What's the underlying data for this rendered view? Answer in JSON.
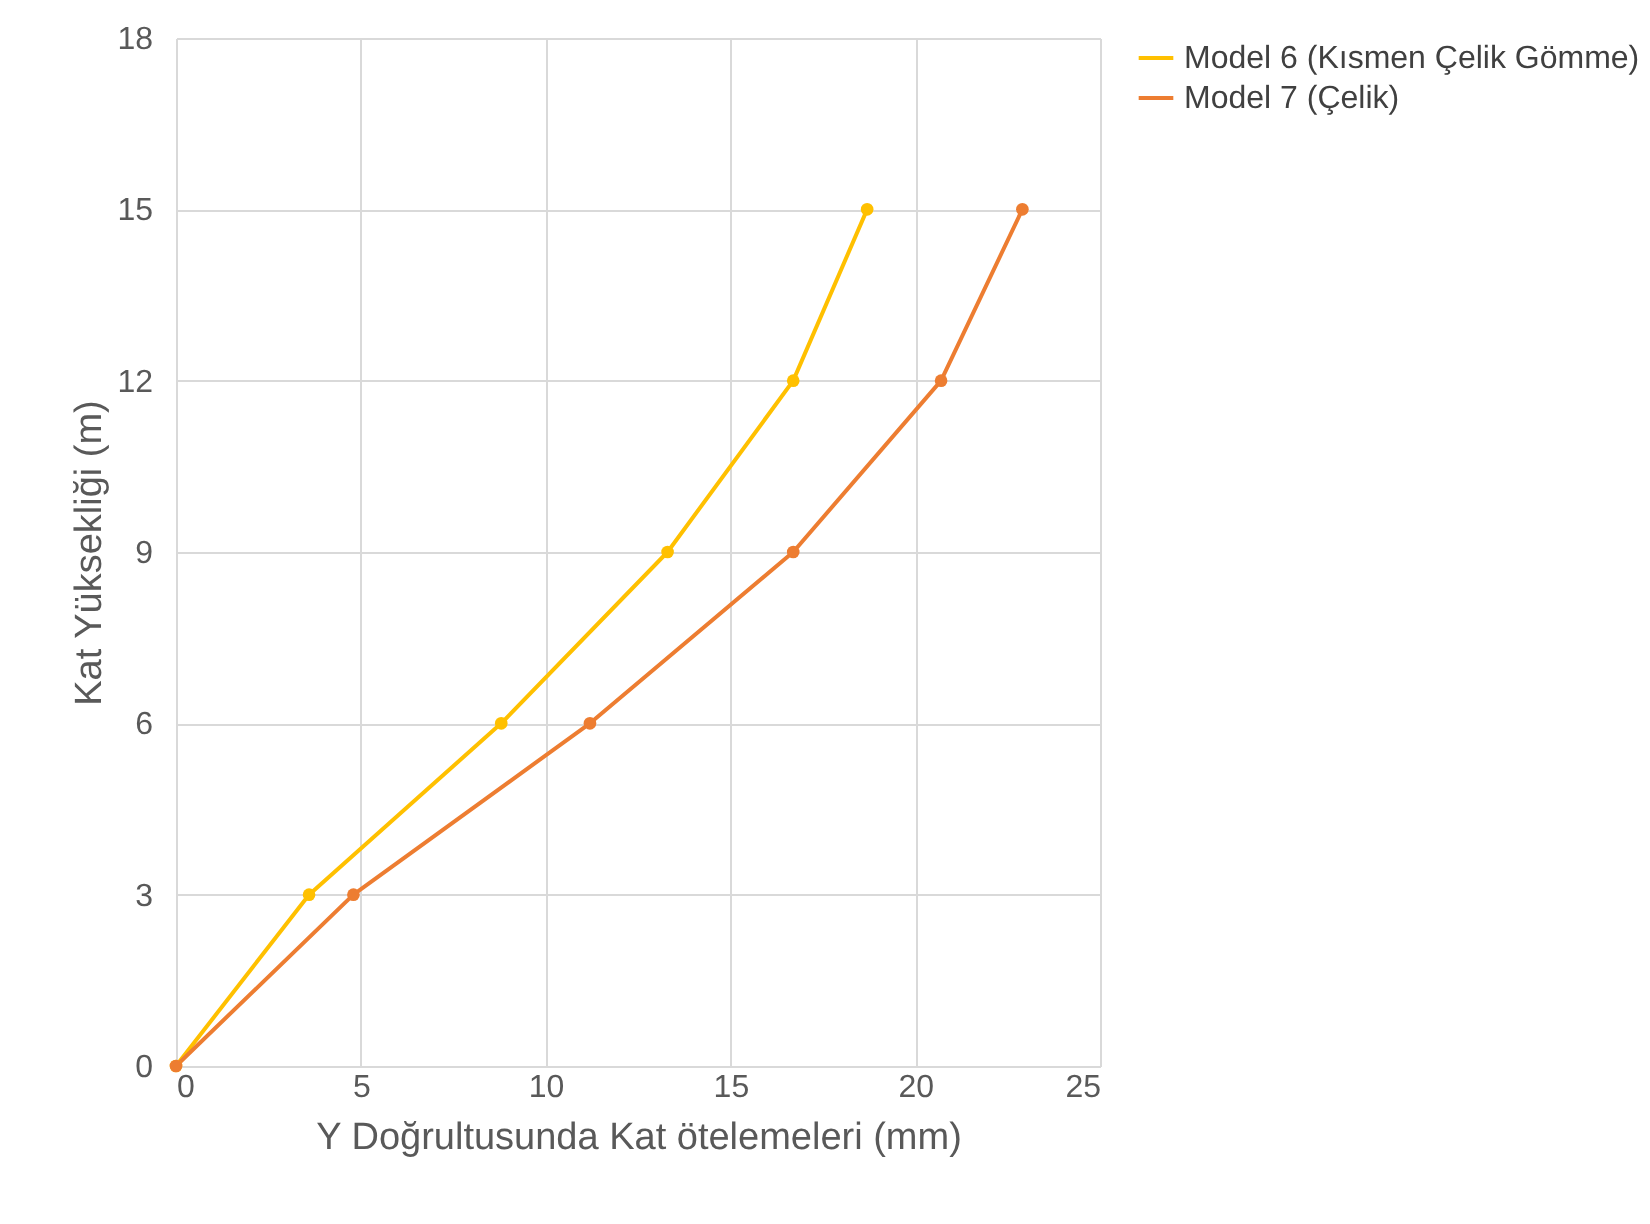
{
  "chart_data": {
    "type": "line",
    "xlabel": "Y Doğrultusunda Kat ötelemeleri (mm)",
    "ylabel": "Kat Yüksekliği (m)",
    "series": [
      {
        "name": "Model 6 (Kısmen Çelik Gömme)",
        "color": "#ffc000",
        "x": [
          0,
          3.6,
          8.8,
          13.3,
          16.7,
          18.7
        ],
        "values": [
          0,
          3,
          6,
          9,
          12,
          15
        ]
      },
      {
        "name": "Model 7 (Çelik)",
        "color": "#ed7d31",
        "x": [
          0,
          4.8,
          11.2,
          16.7,
          20.7,
          22.9
        ],
        "values": [
          0,
          3,
          6,
          9,
          12,
          15
        ]
      }
    ],
    "xlim": [
      0,
      25
    ],
    "xticks": [
      0,
      5,
      10,
      15,
      20,
      25
    ],
    "ylim": [
      0,
      18
    ],
    "yticks": [
      0,
      3,
      6,
      9,
      12,
      15,
      18
    ],
    "grid": true,
    "legend": "right",
    "marker": "circle",
    "line_style": "solid"
  }
}
